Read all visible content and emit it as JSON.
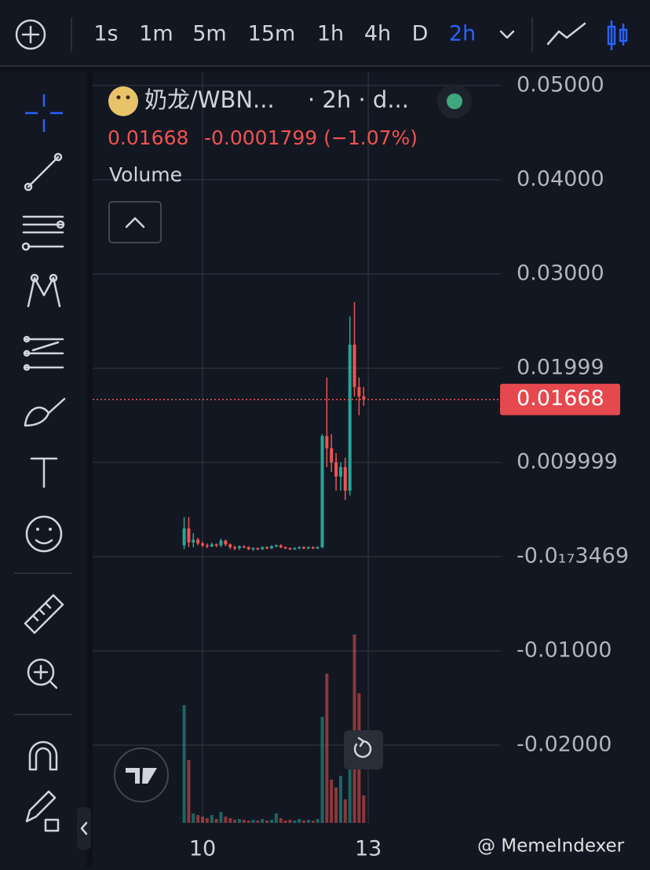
{
  "toolbar": {
    "intervals": [
      "1s",
      "1m",
      "5m",
      "15m",
      "1h",
      "4h",
      "D",
      "2h"
    ],
    "active": "2h"
  },
  "chart_data": {
    "type": "candlestick",
    "title": "奶龙/WBN...",
    "subtitle": "· 2h · d...",
    "last_value": 0.01668,
    "change_label": "-0.0001799 (−1.07%)",
    "study": "Volume",
    "up_color": "#26a69a",
    "down_color": "#ef5350",
    "xlim": [
      8.01,
      15.4
    ],
    "xticks": [
      10,
      13
    ],
    "ylim": [
      -0.02825,
      0.0514
    ],
    "yticks": [
      {
        "value": 0.05,
        "label": "0.05000"
      },
      {
        "value": 0.04,
        "label": "0.04000"
      },
      {
        "value": 0.03,
        "label": "0.03000"
      },
      {
        "value": 0.01999,
        "label": "0.01999"
      },
      {
        "value": 0.009999,
        "label": "0.009999"
      },
      {
        "value": -3.469e-18,
        "label": "-0.0₁₇3469"
      },
      {
        "value": -0.01,
        "label": "-0.01000"
      },
      {
        "value": -0.02,
        "label": "-0.02000"
      }
    ],
    "grid": true,
    "x": [
      9.667,
      9.75,
      9.833,
      9.917,
      10,
      10.083,
      10.167,
      10.25,
      10.333,
      10.417,
      10.5,
      10.583,
      10.667,
      10.75,
      10.833,
      10.917,
      11,
      11.083,
      11.167,
      11.25,
      11.333,
      11.417,
      11.5,
      11.583,
      11.667,
      11.75,
      11.833,
      11.917,
      12,
      12.083,
      12.167,
      12.25,
      12.333,
      12.417,
      12.5,
      12.583,
      12.667,
      12.75,
      12.833,
      12.917
    ],
    "open": [
      0.0012,
      0.003,
      0.0015,
      0.0018,
      0.0014,
      0.0012,
      0.0011,
      0.0013,
      0.0012,
      0.0017,
      0.0013,
      0.001,
      0.0009,
      0.0011,
      0.001,
      0.0008,
      0.0009,
      0.0008,
      0.001,
      0.0009,
      0.0011,
      0.0012,
      0.001,
      0.0009,
      0.0008,
      0.0009,
      0.001,
      0.0009,
      0.001,
      0.0009,
      0.001,
      0.0128,
      0.0115,
      0.01,
      0.0085,
      0.0095,
      0.007,
      0.0225,
      0.018,
      0.017
    ],
    "high": [
      0.0042,
      0.0042,
      0.0025,
      0.002,
      0.0016,
      0.0014,
      0.0015,
      0.0014,
      0.0019,
      0.0018,
      0.0014,
      0.0012,
      0.0012,
      0.0012,
      0.0011,
      0.001,
      0.001,
      0.0011,
      0.0011,
      0.0012,
      0.0013,
      0.0013,
      0.0011,
      0.001,
      0.001,
      0.0011,
      0.0011,
      0.0011,
      0.0011,
      0.0011,
      0.013,
      0.019,
      0.013,
      0.011,
      0.01,
      0.0105,
      0.0255,
      0.027,
      0.019,
      0.018
    ],
    "low": [
      0.0008,
      0.001,
      0.001,
      0.0012,
      0.001,
      0.0009,
      0.001,
      0.001,
      0.001,
      0.0011,
      0.0008,
      0.0007,
      0.0007,
      0.0009,
      0.0007,
      0.0006,
      0.0007,
      0.0007,
      0.0008,
      0.0008,
      0.001,
      0.0009,
      0.0008,
      0.0007,
      0.0007,
      0.0008,
      0.0008,
      0.0008,
      0.0008,
      0.0008,
      0.0009,
      0.0095,
      0.009,
      0.007,
      0.007,
      0.006,
      0.0065,
      0.017,
      0.015,
      0.016
    ],
    "close": [
      0.003,
      0.0015,
      0.0018,
      0.0014,
      0.0012,
      0.0011,
      0.0013,
      0.0012,
      0.0017,
      0.0013,
      0.001,
      0.0009,
      0.0011,
      0.001,
      0.0008,
      0.0009,
      0.0008,
      0.001,
      0.0009,
      0.0011,
      0.0012,
      0.001,
      0.0009,
      0.0008,
      0.0009,
      0.001,
      0.0009,
      0.001,
      0.0009,
      0.001,
      0.0128,
      0.0115,
      0.01,
      0.0085,
      0.0095,
      0.007,
      0.0225,
      0.018,
      0.017,
      0.01668
    ],
    "volume": [
      150,
      80,
      12,
      10,
      8,
      6,
      10,
      5,
      14,
      8,
      6,
      4,
      5,
      4,
      3,
      4,
      3,
      5,
      3,
      4,
      12,
      6,
      3,
      4,
      3,
      5,
      3,
      4,
      3,
      5,
      135,
      190,
      55,
      45,
      60,
      30,
      100,
      240,
      165,
      35
    ]
  },
  "watermark": "@ MemeIndexer"
}
